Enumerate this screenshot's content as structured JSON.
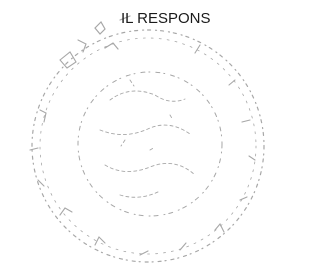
{
  "text": "IL RESPONS"
}
